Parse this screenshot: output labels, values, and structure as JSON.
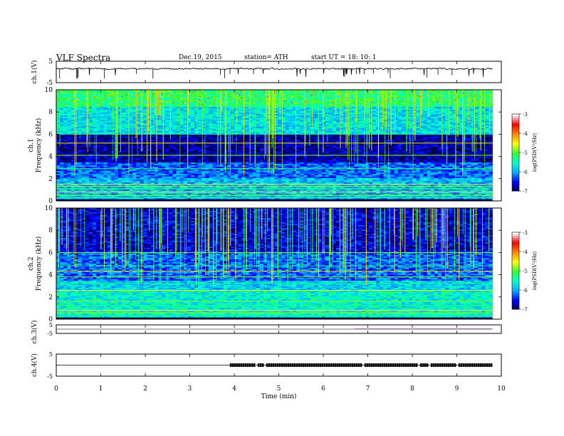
{
  "header": {
    "title": "VLF  Spectra",
    "date": "Dec.19, 2015",
    "station": "station= ATH",
    "start": "start  UT  =    18: 10: 1"
  },
  "colors": {
    "spectrogram_ramp": [
      "#00004a",
      "#0000ff",
      "#00aaff",
      "#00ffcc",
      "#33ff33",
      "#ffff00",
      "#ff8800",
      "#ff0000",
      "#ffffff"
    ],
    "waveform": "#000000",
    "ch3_trace": "#8f8f8f"
  },
  "chart_data": [
    {
      "type": "line",
      "panel": "ch1-waveform",
      "ylabel": "ch.1(V)",
      "ylim": [
        -5,
        5
      ],
      "yticks": [
        "5",
        "-5"
      ],
      "xlim": [
        0,
        10
      ],
      "series": [
        {
          "x_range": [
            0,
            9.8
          ],
          "baseline_V": 1.5,
          "noise_V": 0.6
        }
      ]
    },
    {
      "type": "heatmap",
      "panel": "ch1-spectrogram",
      "ylabel_top": "ch.1",
      "ylabel": "Frequency  (kHz)",
      "ylim": [
        0,
        10
      ],
      "yticks": [
        "0",
        "2",
        "4",
        "6",
        "8",
        "10"
      ],
      "xlim": [
        0,
        9.8
      ],
      "colorbar": {
        "label": "log(PSD(V²/Hz)",
        "range": [
          -7,
          -3
        ],
        "ticks": [
          "-3",
          "-4",
          "-5",
          "-6",
          "-7"
        ]
      }
    },
    {
      "type": "heatmap",
      "panel": "ch2-spectrogram",
      "ylabel_top": "ch.2",
      "ylabel": "Frequency  (kHz)",
      "ylim": [
        0,
        10
      ],
      "yticks": [
        "0",
        "2",
        "4",
        "6",
        "8",
        "10"
      ],
      "xlim": [
        0,
        9.8
      ],
      "colorbar": {
        "label": "log(PSD(V²/Hz)",
        "range": [
          -7,
          -3
        ],
        "ticks": [
          "-3",
          "-4",
          "-5",
          "-6",
          "-7"
        ]
      }
    },
    {
      "type": "line",
      "panel": "ch3-waveform",
      "ylabel": "ch.3(V)",
      "ylim": [
        -5,
        5
      ],
      "yticks": [
        "5",
        "-5"
      ],
      "series": [
        {
          "x_range": [
            0,
            9.8
          ],
          "baseline_V": 0.0
        }
      ]
    },
    {
      "type": "line",
      "panel": "ch4-waveform",
      "ylabel": "ch.4(V)",
      "ylim": [
        -5,
        5
      ],
      "yticks": [
        "5",
        "-5"
      ],
      "series": [
        {
          "x_range": [
            0,
            9.8
          ],
          "baseline_V": 0.0,
          "pulse_start_min": 3.9,
          "pulse_end_min": 9.8
        }
      ]
    },
    {
      "type": "axis",
      "panel": "time-axis",
      "xlabel": "Time  (min)",
      "xlim": [
        0,
        10
      ],
      "xticks": [
        "0",
        "1",
        "2",
        "3",
        "4",
        "5",
        "6",
        "7",
        "8",
        "9",
        "10"
      ]
    }
  ]
}
